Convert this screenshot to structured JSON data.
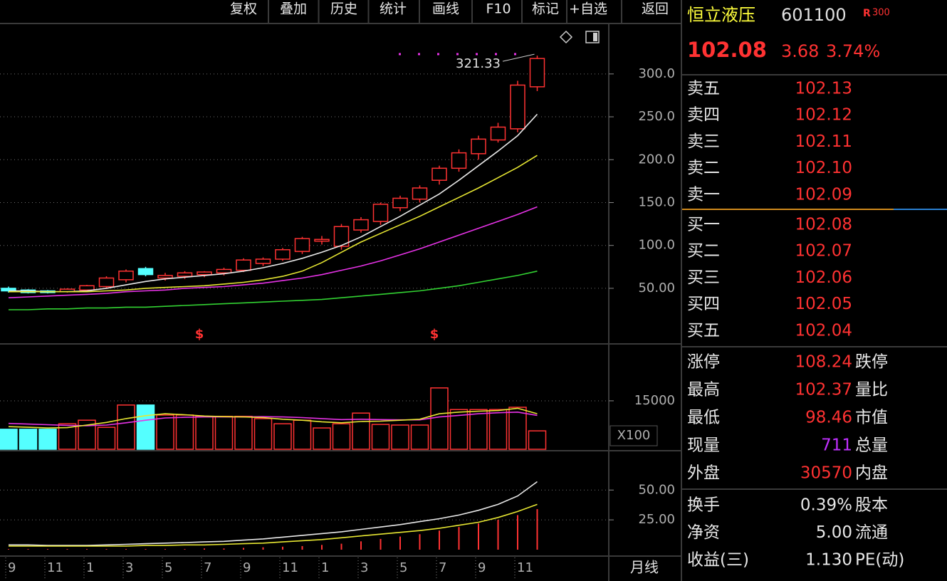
{
  "toolbar": [
    "复权",
    "叠加",
    "历史",
    "统计",
    "画线",
    "F10",
    "标记",
    "+自选",
    "返回"
  ],
  "quote": {
    "name": "恒立液压",
    "code": "601100",
    "badge": "R",
    "badge_text": "300",
    "price": "102.08",
    "change": "3.68",
    "change_pct": "3.74%"
  },
  "order_book": {
    "asks": [
      {
        "label": "卖五",
        "price": "102.13"
      },
      {
        "label": "卖四",
        "price": "102.12"
      },
      {
        "label": "卖三",
        "price": "102.11"
      },
      {
        "label": "卖二",
        "price": "102.10"
      },
      {
        "label": "卖一",
        "price": "102.09"
      }
    ],
    "bids": [
      {
        "label": "买一",
        "price": "102.08"
      },
      {
        "label": "买二",
        "price": "102.07"
      },
      {
        "label": "买三",
        "price": "102.06"
      },
      {
        "label": "买四",
        "price": "102.05"
      },
      {
        "label": "买五",
        "price": "102.04"
      }
    ]
  },
  "stats": [
    {
      "label": "涨停",
      "value": "108.24",
      "label2": "跌停"
    },
    {
      "label": "最高",
      "value": "102.37",
      "label2": "量比"
    },
    {
      "label": "最低",
      "value": "98.46",
      "label2": "市值"
    },
    {
      "label": "现量",
      "value": "711",
      "label2": "总量"
    },
    {
      "label": "外盘",
      "value": "30570",
      "label2": "内盘"
    },
    {
      "label": "换手",
      "value": "0.39%",
      "label2": "股本"
    },
    {
      "label": "净资",
      "value": "5.00",
      "label2": "流通"
    },
    {
      "label": "收益(三)",
      "value": "1.130",
      "label2": "PE(动)"
    }
  ],
  "signals": [
    "$",
    "$"
  ],
  "period": "月线",
  "chart_data": [
    {
      "type": "candlestick",
      "categories": [
        "9",
        null,
        "11",
        null,
        "1",
        null,
        "3",
        null,
        "5",
        null,
        "7",
        null,
        "9",
        null,
        "11",
        null,
        "1",
        null,
        "3",
        null,
        "5",
        null,
        "7",
        null,
        "9",
        null,
        "11",
        null
      ],
      "open": [
        50,
        48,
        47,
        46,
        48,
        52,
        60,
        73,
        62,
        64,
        66,
        68,
        71,
        79,
        84,
        93,
        105,
        99,
        118,
        128,
        144,
        154,
        176,
        190,
        207,
        223,
        236,
        285
      ],
      "high": [
        52,
        49,
        48,
        50,
        54,
        64,
        72,
        75,
        68,
        70,
        70,
        74,
        85,
        86,
        97,
        110,
        111,
        125,
        133,
        150,
        158,
        170,
        193,
        212,
        228,
        243,
        292,
        321.33
      ],
      "low": [
        45,
        44,
        44,
        45,
        46,
        50,
        57,
        64,
        59,
        61,
        63,
        65,
        69,
        76,
        82,
        90,
        101,
        95,
        115,
        124,
        140,
        150,
        171,
        186,
        200,
        220,
        232,
        280
      ],
      "close": [
        47,
        45,
        45,
        49,
        53,
        62,
        70,
        66,
        65,
        68,
        69,
        72,
        83,
        84,
        95,
        108,
        107,
        122,
        130,
        148,
        155,
        167,
        190,
        208,
        224,
        238,
        287,
        318
      ],
      "up_color": "#ff3232",
      "down_color": "#54ffff",
      "high_label": "321.33",
      "series": [
        {
          "color": "#e8e8e8",
          "values": [
            47,
            47,
            46,
            46,
            47,
            50,
            54,
            58,
            61,
            63,
            65,
            67,
            70,
            74,
            79,
            85,
            92,
            100,
            110,
            122,
            134,
            147,
            160,
            176,
            193,
            210,
            228,
            253
          ]
        },
        {
          "color": "#e6e632",
          "values": [
            46,
            46,
            46,
            46,
            46,
            47,
            48,
            50,
            51,
            52,
            53,
            55,
            57,
            60,
            64,
            70,
            80,
            92,
            104,
            114,
            124,
            134,
            145,
            156,
            167,
            179,
            191,
            205
          ]
        },
        {
          "color": "#e632e6",
          "values": [
            39,
            40,
            41,
            42,
            43,
            44,
            46,
            47,
            48,
            50,
            51,
            52,
            54,
            56,
            59,
            62,
            66,
            71,
            76,
            82,
            89,
            96,
            104,
            112,
            120,
            128,
            136,
            145
          ]
        },
        {
          "color": "#32d232",
          "values": [
            25,
            25,
            26,
            26,
            27,
            27,
            28,
            28,
            29,
            30,
            31,
            32,
            33,
            34,
            35,
            36,
            37,
            39,
            41,
            43,
            45,
            47,
            50,
            53,
            57,
            61,
            65,
            70
          ]
        }
      ],
      "ylim": [
        -14,
        353
      ],
      "yticks": [
        {
          "value": 50,
          "label": "50.00"
        },
        {
          "value": 100,
          "label": "100.0"
        },
        {
          "value": 150,
          "label": "150.0"
        },
        {
          "value": 200,
          "label": "200.0"
        },
        {
          "value": 250,
          "label": "250.0"
        },
        {
          "value": 300,
          "label": "300.0"
        }
      ],
      "grid": true
    },
    {
      "type": "bar",
      "values": [
        6200,
        6200,
        6200,
        7900,
        9000,
        6800,
        13700,
        13700,
        10600,
        10600,
        10200,
        10200,
        10200,
        9500,
        7900,
        9000,
        6600,
        7900,
        11200,
        7700,
        7500,
        7500,
        19000,
        12300,
        12300,
        12300,
        13000,
        5700
      ],
      "series": [
        {
          "color": "#e632e6",
          "values": [
            8000,
            7800,
            7600,
            7400,
            7300,
            7500,
            8200,
            9000,
            9700,
            9900,
            10000,
            10000,
            10000,
            10100,
            10000,
            9800,
            9500,
            9200,
            9300,
            9200,
            9100,
            9100,
            10000,
            10500,
            11000,
            11300,
            11500,
            10500
          ]
        },
        {
          "color": "#e6e632",
          "values": [
            7000,
            6800,
            6600,
            6700,
            7500,
            8300,
            9500,
            10400,
            11000,
            10700,
            10300,
            10100,
            10000,
            9800,
            9300,
            9000,
            8500,
            8200,
            8600,
            8700,
            9000,
            9300,
            11000,
            11500,
            11800,
            12000,
            12700,
            11000
          ]
        }
      ],
      "unit_label": "X100",
      "ylim": [
        0,
        32400
      ],
      "yticks": [
        15000
      ],
      "grid": true
    },
    {
      "type": "bar",
      "color": "#ff3232",
      "values": [
        0.5,
        0.5,
        0.5,
        0.5,
        0.5,
        0.5,
        0.5,
        0.5,
        0.5,
        0.5,
        1,
        1,
        1.5,
        2,
        2.5,
        3,
        4,
        5,
        7,
        9,
        11,
        13,
        16,
        19,
        22,
        25,
        29,
        34
      ],
      "series": [
        {
          "color": "#e8e8e8",
          "values": [
            4,
            4,
            3.5,
            3.5,
            3.5,
            4,
            4.5,
            5,
            5.5,
            6,
            6.5,
            7,
            8,
            9,
            10.5,
            12,
            13.5,
            15,
            17,
            19,
            21,
            23.5,
            26,
            29,
            33,
            38,
            45,
            57
          ]
        },
        {
          "color": "#e6e632",
          "values": [
            3,
            3,
            3,
            3,
            3,
            3,
            3,
            3.5,
            3.5,
            4,
            4,
            4.5,
            5,
            5.5,
            6.5,
            7.5,
            8.5,
            10,
            11.5,
            13,
            14.5,
            16,
            18,
            20.5,
            23,
            27,
            32,
            38
          ]
        }
      ],
      "ylim": [
        0,
        80
      ],
      "yticks": [
        {
          "value": 25,
          "label": "25.00"
        },
        {
          "value": 50,
          "label": "50.00"
        }
      ],
      "grid": true
    }
  ]
}
